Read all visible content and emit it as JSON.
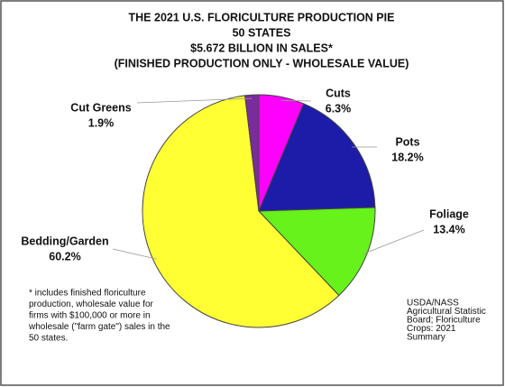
{
  "chart_data": {
    "type": "pie",
    "title": [
      "THE 2021 U.S. FLORICULTURE PRODUCTION PIE",
      "50 STATES",
      "$5.672 BILLION IN SALES*",
      "(FINISHED PRODUCTION ONLY - WHOLESALE VALUE)"
    ],
    "categories": [
      "Cuts",
      "Pots",
      "Foliage",
      "Bedding/Garden",
      "Cut Greens"
    ],
    "values": [
      6.3,
      18.2,
      13.4,
      60.2,
      1.9
    ],
    "value_labels": [
      "6.3%",
      "18.2%",
      "13.4%",
      "60.2%",
      "1.9%"
    ],
    "colors": [
      "#ff00ff",
      "#1c1ca8",
      "#66f21a",
      "#ffff33",
      "#7b2c9c"
    ],
    "footnote": [
      "* includes finished floriculture",
      "production, wholesale value for",
      "firms with $100,000 or more in",
      "wholesale (\"farm gate\") sales in the",
      "50 states."
    ],
    "source": [
      "USDA/NASS",
      "Agricultural Statistic",
      "Board; Floriculture",
      "Crops: 2021",
      "Summary"
    ]
  }
}
